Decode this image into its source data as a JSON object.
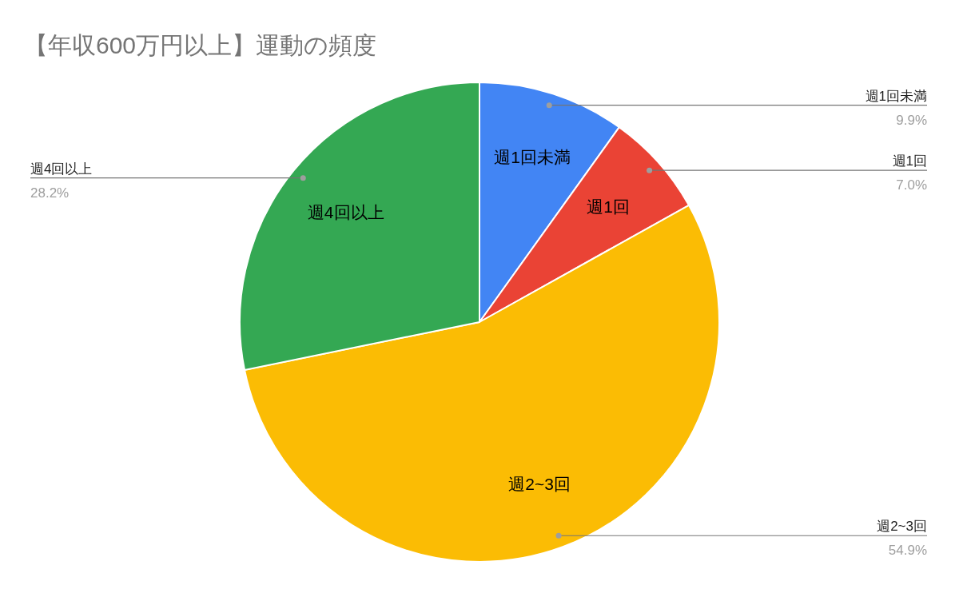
{
  "chart_data": {
    "type": "pie",
    "title": "【年収600万円以上】運動の頻度",
    "categories": [
      "週1回未満",
      "週1回",
      "週2~3回",
      "週4回以上"
    ],
    "values": [
      9.9,
      7.0,
      54.9,
      28.2
    ],
    "colors": [
      "#4285f4",
      "#ea4335",
      "#fbbc04",
      "#34a853"
    ],
    "value_labels": [
      "9.9%",
      "7.0%",
      "54.9%",
      "28.2%"
    ]
  }
}
